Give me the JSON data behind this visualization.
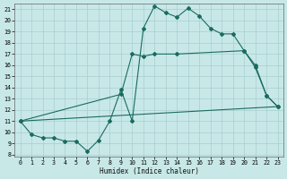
{
  "xlabel": "Humidex (Indice chaleur)",
  "bg_color": "#c8e8e8",
  "grid_color": "#a8cece",
  "line_color": "#1a6b60",
  "xlim": [
    -0.5,
    23.5
  ],
  "ylim": [
    7.8,
    21.5
  ],
  "xticks": [
    0,
    1,
    2,
    3,
    4,
    5,
    6,
    7,
    8,
    9,
    10,
    11,
    12,
    13,
    14,
    15,
    16,
    17,
    18,
    19,
    20,
    21,
    22,
    23
  ],
  "yticks": [
    8,
    9,
    10,
    11,
    12,
    13,
    14,
    15,
    16,
    17,
    18,
    19,
    20,
    21
  ],
  "line1_x": [
    0,
    1,
    2,
    3,
    4,
    5,
    6,
    7,
    8,
    9,
    10,
    11,
    12,
    13,
    14,
    15,
    16,
    17,
    18,
    19,
    20,
    21,
    22,
    23
  ],
  "line1_y": [
    11.0,
    9.8,
    9.5,
    9.5,
    9.2,
    9.2,
    8.3,
    9.3,
    11.0,
    13.8,
    11.0,
    19.3,
    21.3,
    20.7,
    20.3,
    21.1,
    20.4,
    19.3,
    18.8,
    18.8,
    17.3,
    15.8,
    13.3,
    12.3
  ],
  "line2_x": [
    0,
    9,
    10,
    11,
    12,
    14,
    20,
    21,
    22,
    23
  ],
  "line2_y": [
    11.0,
    13.4,
    17.0,
    16.8,
    17.0,
    17.0,
    17.3,
    16.0,
    13.3,
    12.3
  ],
  "line3_x": [
    0,
    23
  ],
  "line3_y": [
    11.0,
    12.3
  ]
}
